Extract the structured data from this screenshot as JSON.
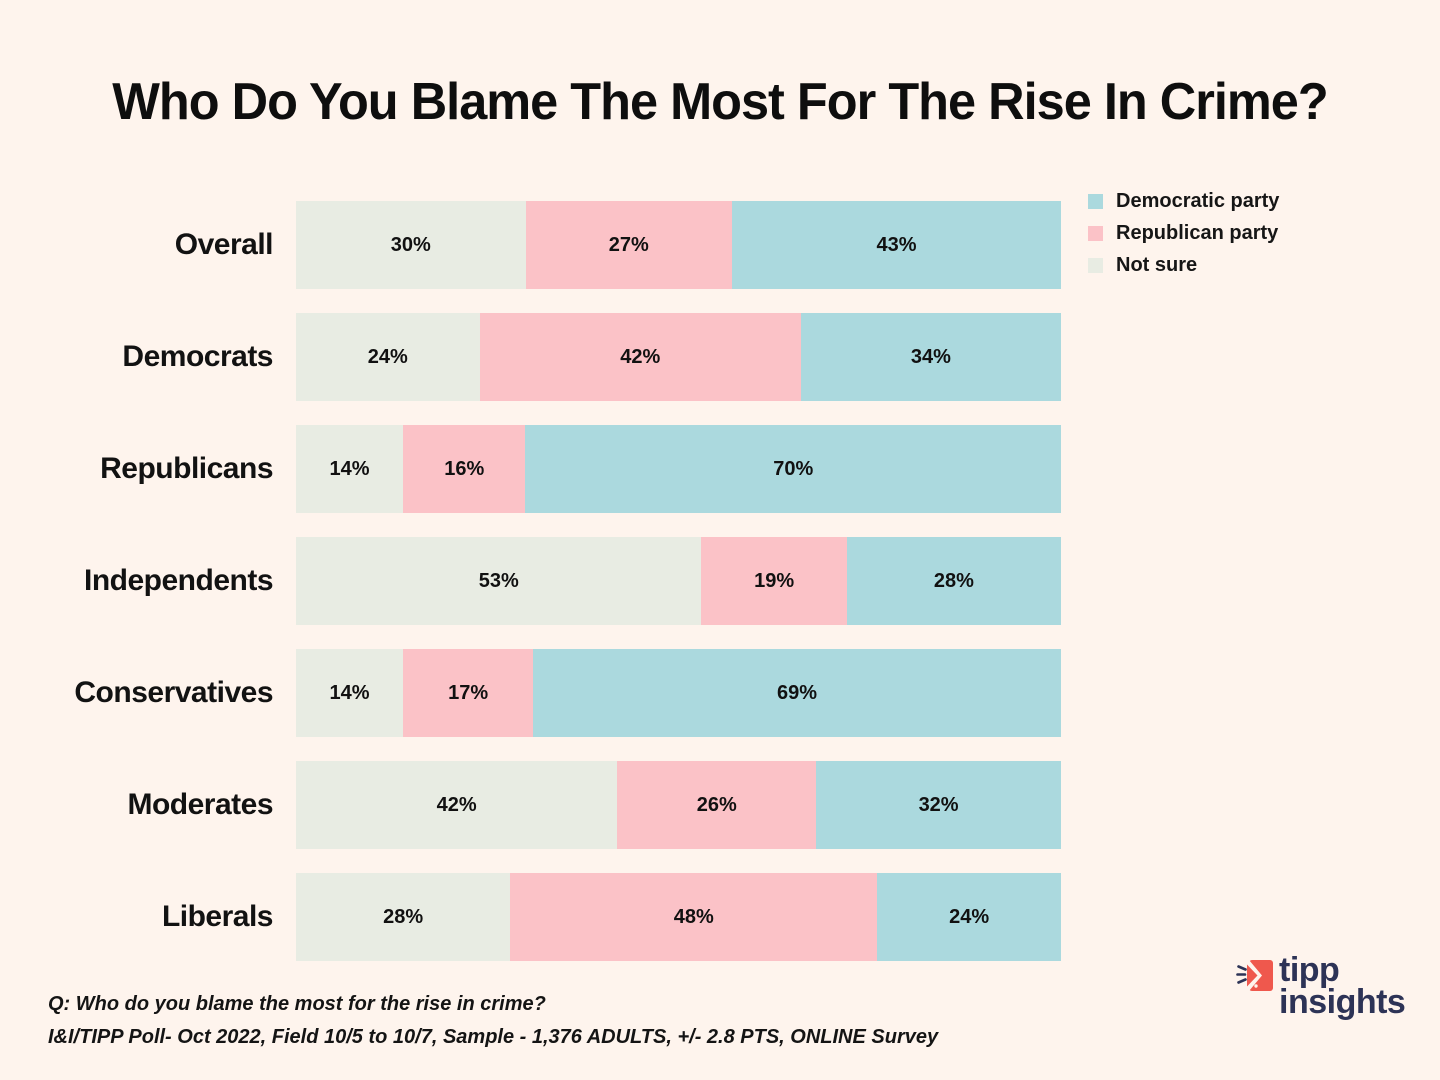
{
  "page": {
    "background": "#FEF4ED"
  },
  "title": "Who Do You Blame The Most For The Rise In Crime?",
  "legend": {
    "items": [
      {
        "label": "Democratic party",
        "color": "#ABD9DE"
      },
      {
        "label": "Republican party",
        "color": "#FBC2C7"
      },
      {
        "label": "Not sure",
        "color": "#E8ECE3"
      }
    ]
  },
  "chart_data": {
    "type": "bar",
    "stacked": true,
    "orientation": "horizontal",
    "title": "Who Do You Blame The Most For The Rise In Crime?",
    "categories": [
      "Overall",
      "Democrats",
      "Republicans",
      "Independents",
      "Conservatives",
      "Moderates",
      "Liberals"
    ],
    "series": [
      {
        "name": "Not sure",
        "color": "#E8ECE3",
        "values": [
          30,
          24,
          14,
          53,
          14,
          42,
          28
        ]
      },
      {
        "name": "Republican party",
        "color": "#FBC2C7",
        "values": [
          27,
          42,
          16,
          19,
          17,
          26,
          48
        ]
      },
      {
        "name": "Democratic party",
        "color": "#ABD9DE",
        "values": [
          43,
          34,
          70,
          28,
          69,
          32,
          24
        ]
      }
    ],
    "value_suffix": "%",
    "xlim": [
      0,
      100
    ],
    "grid": false,
    "legend_position": "top-right"
  },
  "footer": {
    "question": "Q: Who do you blame the most for the rise in crime?",
    "source": "I&I/TIPP Poll- Oct 2022, Field 10/5 to 10/7, Sample - 1,376 ADULTS, +/- 2.8 PTS, ONLINE Survey"
  },
  "logo": {
    "line1": "tipp",
    "line2": "insights",
    "icon_color": "#EF584D",
    "text_color": "#2D3356"
  }
}
